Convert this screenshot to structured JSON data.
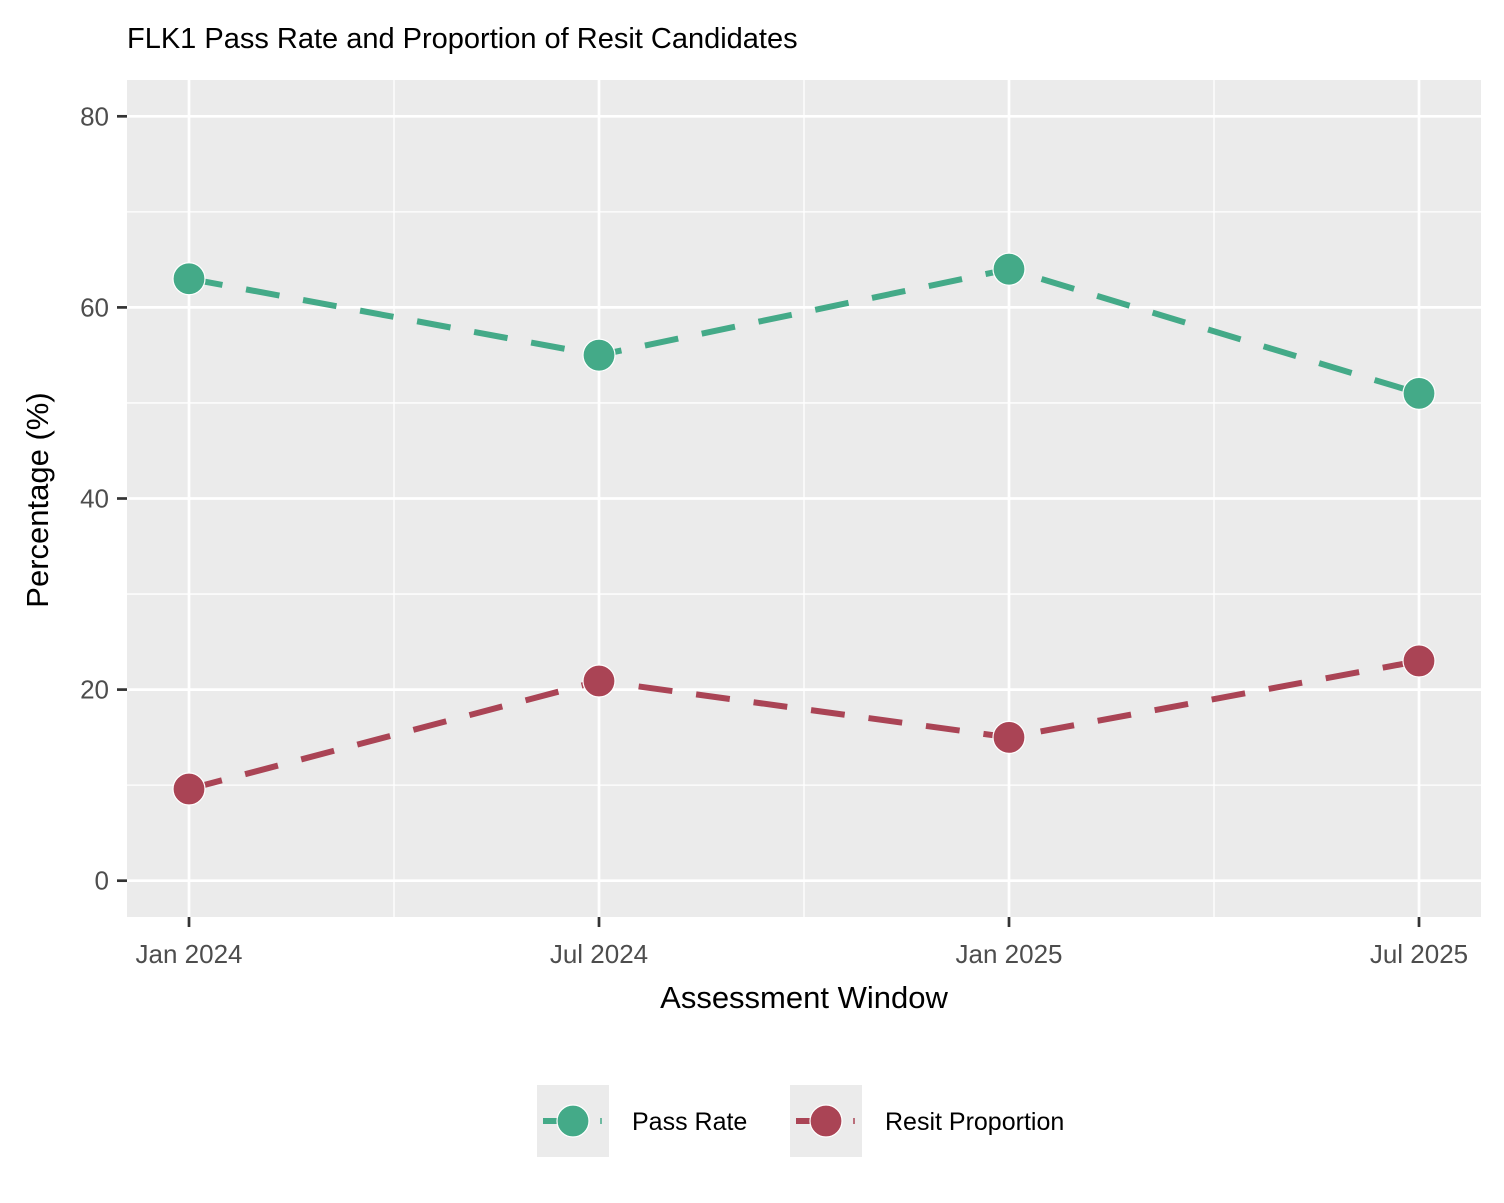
{
  "chart_data": {
    "type": "line",
    "title": "FLK1 Pass Rate and Proportion of Resit Candidates",
    "xlabel": "Assessment Window",
    "ylabel": "Percentage (%)",
    "x": [
      "Jan 2024",
      "Jul 2024",
      "Jan 2025",
      "Jul 2025"
    ],
    "x_tick_labels": [
      "Jan 2024",
      "Jul 2024",
      "Jan 2025",
      "Jul 2025"
    ],
    "y_ticks": [
      0,
      20,
      40,
      60,
      80
    ],
    "y_tick_labels": [
      "0",
      "20",
      "40",
      "60",
      "80"
    ],
    "ylim": [
      -3.8,
      83.8
    ],
    "grid": true,
    "legend_position": "bottom",
    "series": [
      {
        "name": "Pass Rate",
        "color": "#44AA88",
        "line_style": "dashed",
        "marker": "circle",
        "values": [
          63,
          55,
          64,
          51
        ]
      },
      {
        "name": "Resit Proportion",
        "color": "#AA4455",
        "line_style": "dashed",
        "marker": "circle",
        "values": [
          9.6,
          20.9,
          15,
          23
        ]
      }
    ]
  }
}
